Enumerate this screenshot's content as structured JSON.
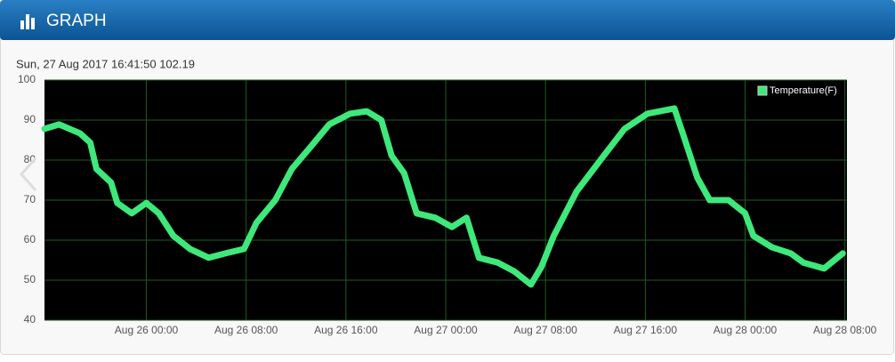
{
  "header": {
    "title": "GRAPH"
  },
  "chart_data": {
    "type": "line",
    "subtitle": "Sun, 27 Aug 2017 16:41:50 102.19",
    "x": [
      "Aug 25 15:50",
      "Aug 25 17:00",
      "Aug 25 18:40",
      "Aug 25 19:30",
      "Aug 25 20:00",
      "Aug 25 21:10",
      "Aug 25 21:40",
      "Aug 25 22:50",
      "Aug 26 00:00",
      "Aug 26 01:00",
      "Aug 26 02:10",
      "Aug 26 03:30",
      "Aug 26 05:00",
      "Aug 26 06:20",
      "Aug 26 07:50",
      "Aug 26 08:50",
      "Aug 26 10:20",
      "Aug 26 11:40",
      "Aug 26 13:10",
      "Aug 26 14:40",
      "Aug 26 16:20",
      "Aug 26 17:40",
      "Aug 26 18:50",
      "Aug 26 19:40",
      "Aug 26 20:40",
      "Aug 26 21:40",
      "Aug 26 23:10",
      "Aug 27 00:30",
      "Aug 27 01:40",
      "Aug 27 02:40",
      "Aug 27 04:10",
      "Aug 27 05:30",
      "Aug 27 06:50",
      "Aug 27 07:40",
      "Aug 27 08:40",
      "Aug 27 10:30",
      "Aug 27 12:40",
      "Aug 27 14:20",
      "Aug 27 16:10",
      "Aug 27 18:20",
      "Aug 27 19:00",
      "Aug 27 20:10",
      "Aug 27 21:10",
      "Aug 27 22:40",
      "Aug 28 00:00",
      "Aug 28 00:40",
      "Aug 28 02:10",
      "Aug 28 03:40",
      "Aug 28 04:40",
      "Aug 28 06:20",
      "Aug 28 07:50"
    ],
    "series": [
      {
        "name": "Temperature(F)",
        "color": "#3ee87a",
        "values": [
          87.8,
          88.9,
          86.7,
          84.4,
          77.8,
          74.4,
          69.3,
          66.7,
          69.3,
          66.7,
          61.1,
          57.8,
          55.6,
          56.7,
          57.8,
          64.4,
          70,
          77.8,
          83.3,
          88.9,
          91.6,
          92.2,
          90,
          81.1,
          76.7,
          66.7,
          65.6,
          63.3,
          65.6,
          55.6,
          54.4,
          52.2,
          48.9,
          53.3,
          61.1,
          72.2,
          81.1,
          87.8,
          91.6,
          92.9,
          86.7,
          75.6,
          70,
          70,
          66.7,
          61.1,
          58.2,
          56.7,
          54.4,
          52.9,
          56.7
        ]
      }
    ],
    "xlim": [
      "Aug 25 15:50",
      "Aug 28 08:10"
    ],
    "xticks": [
      "Aug 26 00:00",
      "Aug 26 08:00",
      "Aug 26 16:00",
      "Aug 27 00:00",
      "Aug 27 08:00",
      "Aug 27 16:00",
      "Aug 28 00:00",
      "Aug 28 08:00"
    ],
    "ylim": [
      40,
      100
    ],
    "yticks": [
      40,
      50,
      60,
      70,
      80,
      90,
      100
    ],
    "grid": true,
    "legend": "top-right"
  }
}
